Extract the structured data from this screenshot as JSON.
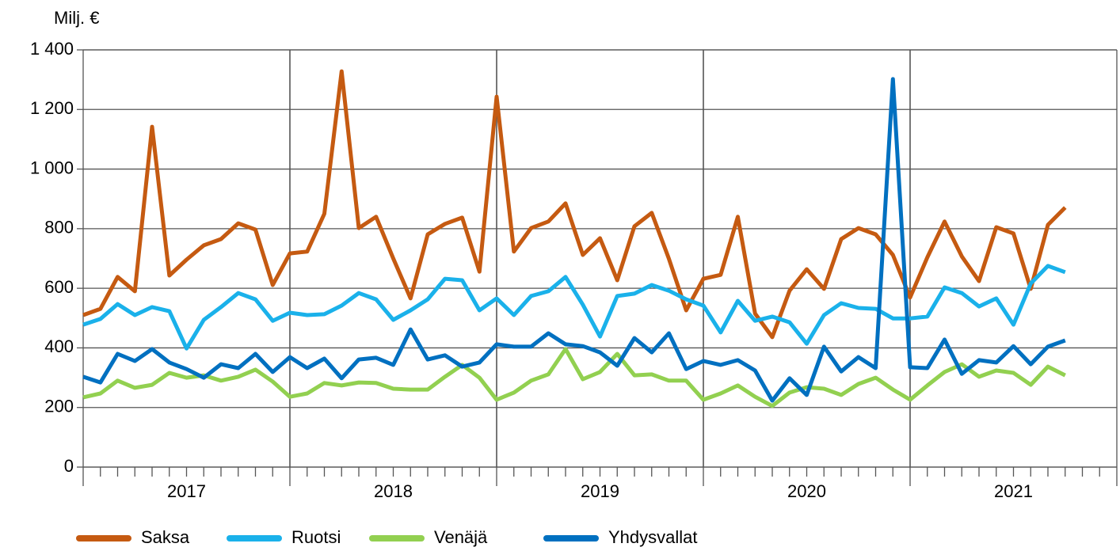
{
  "chart_data": {
    "type": "line",
    "y_label": "Milj. €",
    "categories": [
      null,
      null,
      null,
      null,
      null,
      null,
      null,
      null,
      null,
      null,
      null,
      null,
      null,
      null,
      null,
      null,
      null,
      null,
      null,
      null,
      null,
      null,
      null,
      null,
      null,
      null,
      null,
      null,
      null,
      null,
      null,
      null,
      null,
      null,
      null,
      null,
      null,
      null,
      null,
      null,
      null,
      null,
      null,
      null,
      null,
      null,
      null,
      null,
      null,
      null,
      null,
      null,
      null,
      null,
      null,
      null,
      null,
      null
    ],
    "x_groups": [
      "2017",
      "2018",
      "2019",
      "2020",
      "2021"
    ],
    "ylim": [
      0,
      1400
    ],
    "yticks": [
      0,
      200,
      400,
      600,
      800,
      {
        "value": 1000,
        "label": "1 000"
      },
      {
        "value": 1200,
        "label": "1 200"
      },
      {
        "value": 1400,
        "label": "1 400"
      }
    ],
    "grid": true,
    "legend": "bottom",
    "series": [
      {
        "name": "Saksa",
        "color": "#c55a11",
        "values": [
          510,
          531,
          638,
          590,
          1142,
          643,
          696,
          744,
          765,
          818,
          797,
          611,
          717,
          723,
          850,
          1328,
          802,
          840,
          700,
          566,
          781,
          816,
          837,
          656,
          1243,
          723,
          802,
          824,
          885,
          712,
          768,
          627,
          808,
          853,
          699,
          526,
          632,
          645,
          840,
          515,
          436,
          592,
          664,
          598,
          765,
          802,
          781,
          712,
          569,
          704,
          824,
          707,
          624,
          805,
          784,
          598,
          813,
          871
        ]
      },
      {
        "name": "Ruotsi",
        "color": "#1ab1ea",
        "values": [
          478,
          497,
          547,
          510,
          537,
          523,
          398,
          494,
          537,
          584,
          563,
          491,
          518,
          510,
          513,
          542,
          584,
          563,
          494,
          526,
          563,
          632,
          627,
          526,
          566,
          510,
          574,
          590,
          638,
          545,
          438,
          574,
          582,
          611,
          592,
          563,
          542,
          452,
          558,
          491,
          505,
          486,
          414,
          510,
          550,
          534,
          531,
          499,
          499,
          505,
          603,
          584,
          539,
          566,
          478,
          616,
          675,
          654
        ]
      },
      {
        "name": "Venäjä",
        "color": "#92d050",
        "values": [
          234,
          247,
          290,
          266,
          276,
          316,
          300,
          308,
          290,
          303,
          327,
          287,
          236,
          247,
          282,
          274,
          284,
          282,
          263,
          260,
          260,
          303,
          343,
          300,
          226,
          250,
          290,
          311,
          396,
          295,
          319,
          380,
          308,
          311,
          290,
          290,
          226,
          247,
          274,
          236,
          205,
          250,
          268,
          263,
          242,
          279,
          300,
          260,
          226,
          274,
          319,
          345,
          303,
          324,
          316,
          276,
          337,
          308
        ]
      },
      {
        "name": "Yhdysvallat",
        "color": "#0070c0",
        "values": [
          303,
          284,
          380,
          356,
          396,
          351,
          329,
          300,
          345,
          332,
          380,
          319,
          369,
          332,
          364,
          298,
          361,
          367,
          343,
          462,
          361,
          375,
          337,
          351,
          412,
          404,
          404,
          449,
          412,
          406,
          385,
          340,
          433,
          385,
          449,
          329,
          356,
          343,
          359,
          324,
          223,
          298,
          242,
          404,
          321,
          369,
          332,
          1302,
          335,
          332,
          428,
          313,
          359,
          351,
          406,
          345,
          404,
          425
        ]
      }
    ]
  }
}
